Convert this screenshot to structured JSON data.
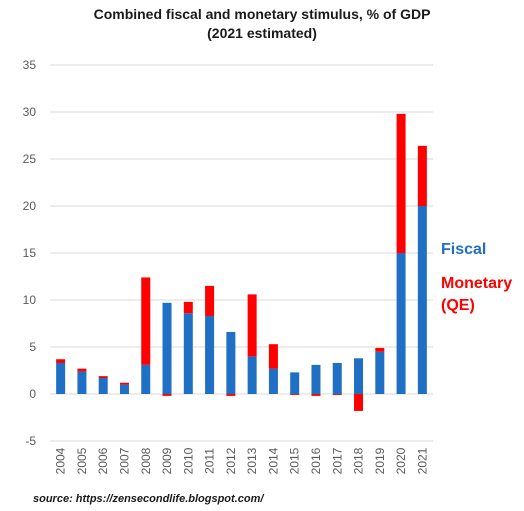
{
  "colors": {
    "fiscal": "#1f6fc5",
    "monetary": "#ff0000",
    "grid": "#d9d9d9",
    "text": "#595959"
  },
  "chart_data": {
    "type": "bar",
    "stacked": true,
    "title": "Combined fiscal and monetary stimulus, % of GDP",
    "subtitle": "(2021 estimated)",
    "xlabel": "",
    "ylabel": "",
    "ylim": [
      -5,
      35
    ],
    "yticks": [
      -5,
      0,
      5,
      10,
      15,
      20,
      25,
      30,
      35
    ],
    "grid": true,
    "legend_position": "right",
    "categories": [
      "2004",
      "2005",
      "2006",
      "2007",
      "2008",
      "2009",
      "2010",
      "2011",
      "2012",
      "2013",
      "2014",
      "2015",
      "2016",
      "2017",
      "2018",
      "2019",
      "2020",
      "2021"
    ],
    "series": [
      {
        "name": "Fiscal",
        "color": "#1f6fc5",
        "values": [
          3.3,
          2.4,
          1.7,
          1.0,
          3.1,
          9.7,
          8.6,
          8.3,
          6.6,
          4.0,
          2.7,
          2.3,
          3.1,
          3.3,
          3.8,
          4.5,
          15.0,
          20.0
        ]
      },
      {
        "name": "Monetary (QE)",
        "color": "#ff0000",
        "values": [
          0.4,
          0.3,
          0.2,
          0.2,
          9.3,
          -0.2,
          1.2,
          3.2,
          -0.2,
          6.6,
          2.6,
          -0.1,
          -0.2,
          -0.1,
          -1.8,
          0.4,
          14.8,
          6.4
        ]
      }
    ]
  },
  "title_line1": "Combined fiscal and monetary stimulus, % of GDP",
  "title_line2": "(2021 estimated)",
  "legend": {
    "fiscal": "Fiscal",
    "monetary_line1": "Monetary",
    "monetary_line2": "(QE)"
  },
  "source": "source: https://zensecondlife.blogspot.com/"
}
